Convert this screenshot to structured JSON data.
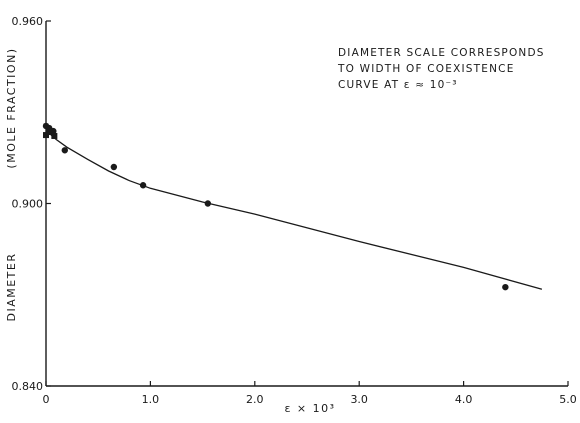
{
  "chart_data": {
    "type": "scatter",
    "xlabel": "ε × 10³",
    "ylabel_top": "(MOLE FRACTION)",
    "ylabel_bottom": "DIAMETER",
    "annotation": [
      "DIAMETER  SCALE CORRESPONDS",
      "TO WIDTH OF COEXISTENCE",
      "CURVE AT  ε ≈ 10⁻³"
    ],
    "xlim": [
      0,
      5.0
    ],
    "ylim": [
      0.84,
      0.96
    ],
    "x_ticks": [
      0,
      1.0,
      2.0,
      3.0,
      4.0,
      5.0
    ],
    "x_tick_labels": [
      "0",
      "1.0",
      "2.0",
      "3.0",
      "4.0",
      "5.0"
    ],
    "y_ticks": [
      0.84,
      0.9,
      0.96
    ],
    "y_tick_labels": [
      "0.840",
      "0.900",
      "0.960"
    ],
    "grid": false,
    "series": [
      {
        "kind": "points",
        "x": [
          0.0,
          0.03,
          0.07,
          0.18,
          0.65,
          0.93,
          1.55,
          4.4
        ],
        "y": [
          0.9255,
          0.9248,
          0.9238,
          0.9175,
          0.912,
          0.906,
          0.9,
          0.8725
        ]
      },
      {
        "kind": "points",
        "marker": "square",
        "x": [
          0.0,
          0.03,
          0.08
        ],
        "y": [
          0.9225,
          0.9235,
          0.9222
        ]
      },
      {
        "kind": "line",
        "x": [
          0.0,
          0.05,
          0.1,
          0.2,
          0.4,
          0.6,
          0.8,
          1.0,
          1.5,
          2.0,
          3.0,
          4.0,
          4.75
        ],
        "y": [
          0.9255,
          0.9225,
          0.921,
          0.9185,
          0.9145,
          0.9107,
          0.9075,
          0.905,
          0.9005,
          0.8965,
          0.8875,
          0.879,
          0.8718
        ]
      }
    ]
  }
}
